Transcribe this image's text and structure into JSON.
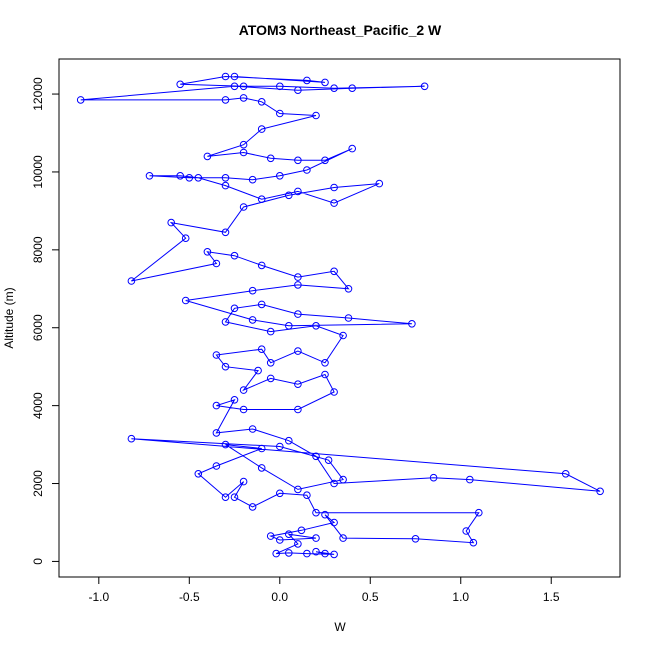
{
  "chart_data": {
    "type": "line",
    "title": "ATOM3 Northeast_Pacific_2 W",
    "xlabel": "W",
    "ylabel": "Altitude (m)",
    "xlim": [
      -1.22,
      1.88
    ],
    "ylim": [
      -400,
      12900
    ],
    "x_ticks": [
      -1.0,
      -0.5,
      0.0,
      0.5,
      1.0,
      1.5
    ],
    "x_tick_labels": [
      "-1.0",
      "-0.5",
      "0.0",
      "0.5",
      "1.0",
      "1.5"
    ],
    "y_ticks": [
      0,
      2000,
      4000,
      6000,
      8000,
      10000,
      12000
    ],
    "y_tick_labels": [
      "0",
      "2000",
      "4000",
      "6000",
      "8000",
      "10000",
      "12000"
    ],
    "line_color": "#0000ff",
    "marker": "open-circle",
    "grid": false,
    "legend": "none",
    "series": [
      {
        "points": [
          [
            0.25,
            200
          ],
          [
            0.2,
            250
          ],
          [
            0.3,
            180
          ],
          [
            0.15,
            200
          ],
          [
            0.05,
            220
          ],
          [
            -0.02,
            200
          ],
          [
            0.1,
            450
          ],
          [
            0.05,
            700
          ],
          [
            0.2,
            600
          ],
          [
            0.0,
            550
          ],
          [
            -0.05,
            650
          ],
          [
            0.12,
            800
          ],
          [
            0.3,
            1000
          ],
          [
            0.25,
            1200
          ],
          [
            0.35,
            600
          ],
          [
            0.75,
            580
          ],
          [
            1.07,
            480
          ],
          [
            1.03,
            780
          ],
          [
            1.1,
            1250
          ],
          [
            0.2,
            1250
          ],
          [
            0.15,
            1700
          ],
          [
            0.0,
            1750
          ],
          [
            -0.15,
            1400
          ],
          [
            -0.25,
            1650
          ],
          [
            -0.2,
            2050
          ],
          [
            -0.3,
            1650
          ],
          [
            -0.45,
            2250
          ],
          [
            -0.35,
            2450
          ],
          [
            -0.1,
            2900
          ],
          [
            -0.3,
            3000
          ],
          [
            -0.1,
            2400
          ],
          [
            0.1,
            1850
          ],
          [
            0.35,
            2100
          ],
          [
            0.27,
            2600
          ],
          [
            0.0,
            2950
          ],
          [
            -0.82,
            3150
          ],
          [
            1.58,
            2250
          ],
          [
            1.77,
            1800
          ],
          [
            1.05,
            2100
          ],
          [
            0.85,
            2150
          ],
          [
            0.3,
            2000
          ],
          [
            0.2,
            2700
          ],
          [
            0.05,
            3100
          ],
          [
            -0.15,
            3400
          ],
          [
            -0.35,
            3300
          ],
          [
            -0.25,
            4150
          ],
          [
            -0.35,
            4000
          ],
          [
            -0.2,
            3900
          ],
          [
            0.1,
            3900
          ],
          [
            0.3,
            4350
          ],
          [
            0.25,
            4800
          ],
          [
            0.1,
            4550
          ],
          [
            -0.05,
            4700
          ],
          [
            -0.2,
            4400
          ],
          [
            -0.12,
            4900
          ],
          [
            -0.3,
            5000
          ],
          [
            -0.35,
            5300
          ],
          [
            -0.1,
            5450
          ],
          [
            -0.05,
            5100
          ],
          [
            0.1,
            5400
          ],
          [
            0.25,
            5100
          ],
          [
            0.35,
            5800
          ],
          [
            0.2,
            6050
          ],
          [
            -0.05,
            5900
          ],
          [
            -0.3,
            6150
          ],
          [
            -0.25,
            6500
          ],
          [
            -0.1,
            6600
          ],
          [
            0.1,
            6350
          ],
          [
            0.38,
            6250
          ],
          [
            0.73,
            6100
          ],
          [
            0.05,
            6050
          ],
          [
            -0.15,
            6200
          ],
          [
            -0.52,
            6700
          ],
          [
            -0.15,
            6950
          ],
          [
            0.1,
            7100
          ],
          [
            0.38,
            7000
          ],
          [
            0.3,
            7450
          ],
          [
            0.1,
            7300
          ],
          [
            -0.1,
            7600
          ],
          [
            -0.25,
            7850
          ],
          [
            -0.4,
            7950
          ],
          [
            -0.35,
            7650
          ],
          [
            -0.82,
            7200
          ],
          [
            -0.52,
            8300
          ],
          [
            -0.6,
            8700
          ],
          [
            -0.3,
            8450
          ],
          [
            -0.2,
            9100
          ],
          [
            0.05,
            9400
          ],
          [
            0.3,
            9600
          ],
          [
            0.55,
            9700
          ],
          [
            0.3,
            9200
          ],
          [
            0.1,
            9500
          ],
          [
            -0.1,
            9300
          ],
          [
            -0.3,
            9650
          ],
          [
            -0.45,
            9850
          ],
          [
            -0.55,
            9900
          ],
          [
            -0.72,
            9900
          ],
          [
            -0.5,
            9850
          ],
          [
            -0.3,
            9850
          ],
          [
            -0.15,
            9800
          ],
          [
            0.0,
            9900
          ],
          [
            0.15,
            10050
          ],
          [
            0.4,
            10600
          ],
          [
            0.25,
            10300
          ],
          [
            0.1,
            10300
          ],
          [
            -0.05,
            10350
          ],
          [
            -0.2,
            10500
          ],
          [
            -0.4,
            10400
          ],
          [
            -0.2,
            10700
          ],
          [
            -0.1,
            11100
          ],
          [
            0.2,
            11450
          ],
          [
            0.0,
            11500
          ],
          [
            -0.1,
            11800
          ],
          [
            -0.2,
            11900
          ],
          [
            -0.3,
            11850
          ],
          [
            -1.1,
            11850
          ],
          [
            -0.25,
            12200
          ],
          [
            0.1,
            12100
          ],
          [
            0.4,
            12150
          ],
          [
            0.8,
            12200
          ],
          [
            0.3,
            12150
          ],
          [
            0.0,
            12200
          ],
          [
            -0.2,
            12200
          ],
          [
            -0.55,
            12250
          ],
          [
            -0.3,
            12450
          ],
          [
            0.15,
            12350
          ],
          [
            0.25,
            12300
          ],
          [
            -0.25,
            12450
          ]
        ]
      }
    ]
  }
}
